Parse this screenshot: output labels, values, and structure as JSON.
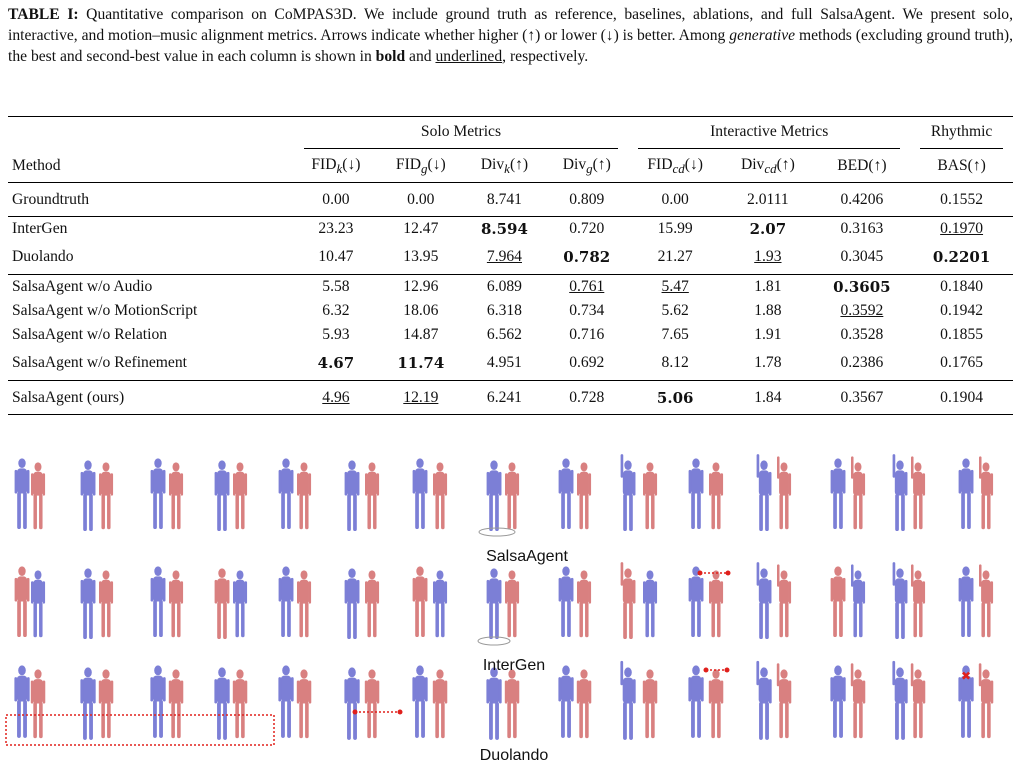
{
  "caption": {
    "label": "TABLE I:",
    "part1": " Quantitative comparison on CoMPAS3D. We include ground truth as reference, baselines, ablations, and full SalsaAgent. We present solo, interactive, and motion–music alignment metrics. Arrows indicate whether higher (↑) or lower (↓) is better. Among ",
    "emph": "generative",
    "part2": " methods (excluding ground truth), the best and second-best value in each column is shown in ",
    "bold_word": "bold",
    "and": " and ",
    "underline_word": "underlined",
    "end": ", respectively."
  },
  "table": {
    "groups": {
      "solo": "Solo Metrics",
      "interactive": "Interactive Metrics",
      "rhythmic": "Rhythmic"
    },
    "method_header": "Method",
    "columns": [
      "FIDk(↓)",
      "FIDg(↓)",
      "Divk(↑)",
      "Divg(↑)",
      "FIDcd(↓)",
      "Divcd(↑)",
      "BED(↑)",
      "BAS(↑)"
    ],
    "rows": [
      {
        "method": "Groundtruth",
        "values": [
          "0.00",
          "0.00",
          "8.741",
          "0.809",
          "0.00",
          "2.0111",
          "0.4206",
          "0.1552"
        ]
      },
      {
        "method": "InterGen",
        "values": [
          "23.23",
          "12.47",
          "8.594",
          "0.720",
          "15.99",
          "2.07",
          "0.3163",
          "0.1970"
        ]
      },
      {
        "method": "Duolando",
        "values": [
          "10.47",
          "13.95",
          "7.964",
          "0.782",
          "21.27",
          "1.93",
          "0.3045",
          "0.2201"
        ]
      },
      {
        "method": "SalsaAgent w/o Audio",
        "values": [
          "5.58",
          "12.96",
          "6.089",
          "0.761",
          "5.47",
          "1.81",
          "0.3605",
          "0.1840"
        ]
      },
      {
        "method": "SalsaAgent w/o MotionScript",
        "values": [
          "6.32",
          "18.06",
          "6.318",
          "0.734",
          "5.62",
          "1.88",
          "0.3592",
          "0.1942"
        ]
      },
      {
        "method": "SalsaAgent w/o Relation",
        "values": [
          "5.93",
          "14.87",
          "6.562",
          "0.716",
          "7.65",
          "1.91",
          "0.3528",
          "0.1855"
        ]
      },
      {
        "method": "SalsaAgent w/o Refinement",
        "values": [
          "4.67",
          "11.74",
          "4.951",
          "0.692",
          "8.12",
          "1.78",
          "0.2386",
          "0.1765"
        ]
      },
      {
        "method": "SalsaAgent (ours)",
        "values": [
          "4.96",
          "12.19",
          "6.241",
          "0.728",
          "5.06",
          "1.84",
          "0.3567",
          "0.1904"
        ]
      }
    ]
  },
  "figure": {
    "labels": [
      "SalsaAgent",
      "InterGen",
      "Duolando"
    ],
    "colors": {
      "blue_dancer": "#7c7fd6",
      "red_dancer": "#d98080",
      "annotation": "#e0201c"
    }
  }
}
